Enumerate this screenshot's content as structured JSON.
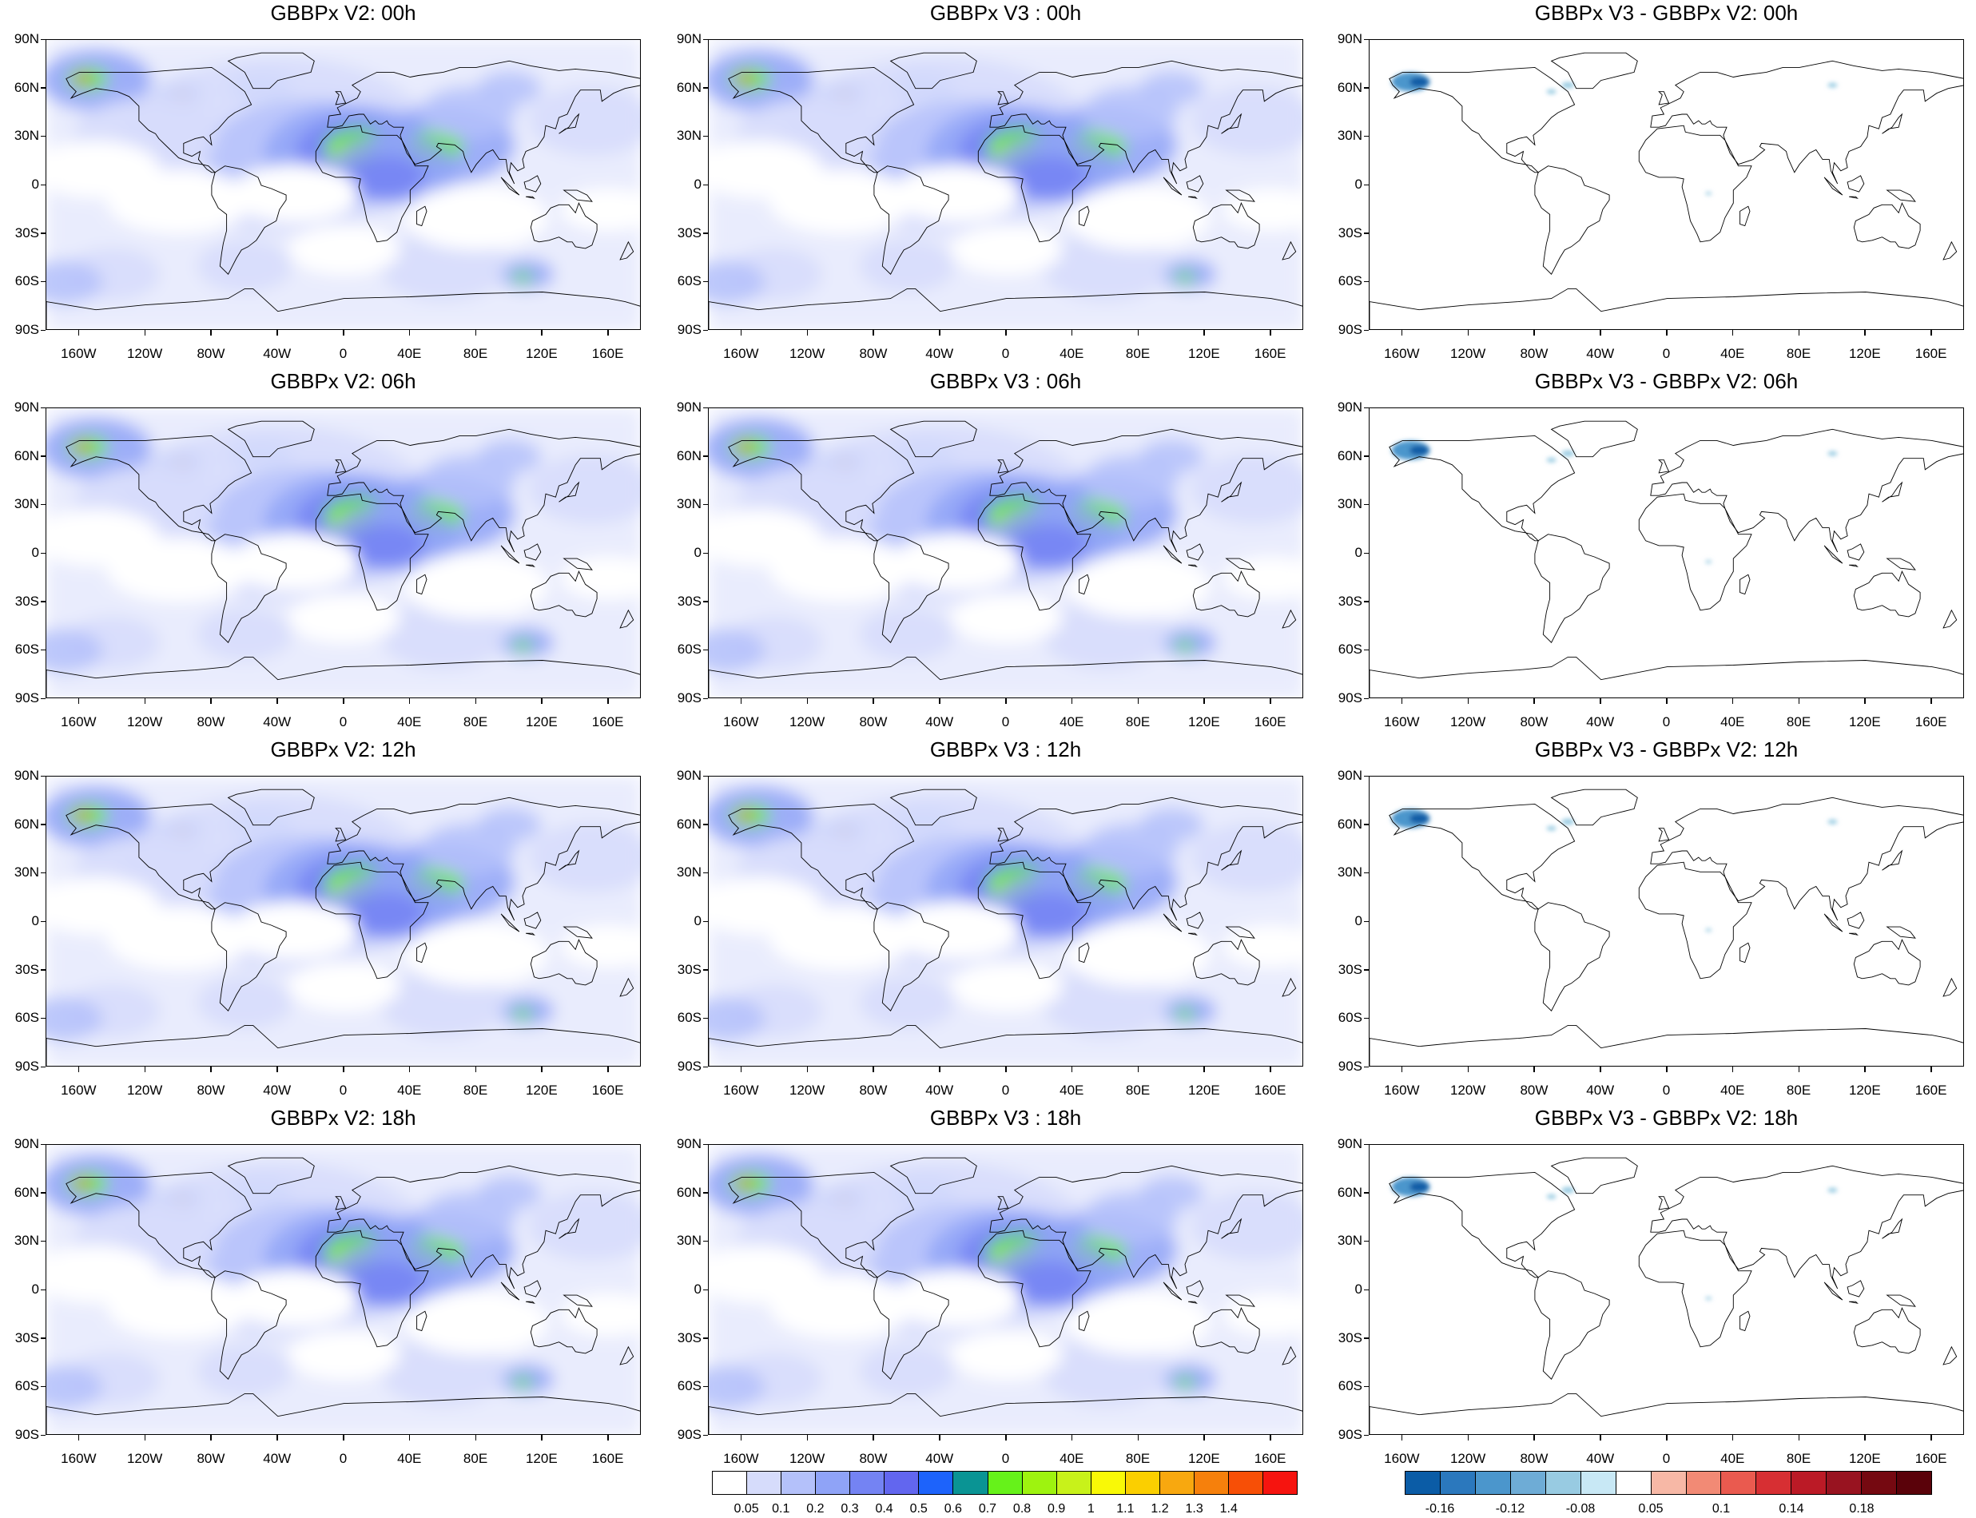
{
  "figure": {
    "rows": [
      {
        "time": "00h",
        "titles": [
          "GBBPx V2: 00h",
          "GBBPx V3 : 00h",
          "GBBPx V3 - GBBPx V2: 00h"
        ]
      },
      {
        "time": "06h",
        "titles": [
          "GBBPx V2: 06h",
          "GBBPx V3 : 06h",
          "GBBPx V3 - GBBPx V2: 06h"
        ]
      },
      {
        "time": "12h",
        "titles": [
          "GBBPx V2: 12h",
          "GBBPx V3 : 12h",
          "GBBPx V3 - GBBPx V2: 12h"
        ]
      },
      {
        "time": "18h",
        "titles": [
          "GBBPx V2: 18h",
          "GBBPx V3 : 18h",
          "GBBPx V3 - GBBPx V2: 18h"
        ]
      }
    ],
    "lat_ticks": [
      "90N",
      "60N",
      "30N",
      "0",
      "30S",
      "60S",
      "90S"
    ],
    "lon_ticks": [
      "160W",
      "120W",
      "80W",
      "40W",
      "0",
      "40E",
      "80E",
      "120E",
      "160E"
    ]
  },
  "legends": {
    "field": {
      "colors": [
        "#ffffff",
        "#d6dcfb",
        "#b4c1fa",
        "#8fa3f7",
        "#7483f3",
        "#6266ef",
        "#1d63fb",
        "#0a9494",
        "#66f21a",
        "#9ef30f",
        "#c8f21a",
        "#f9f906",
        "#fbcf00",
        "#f8a80f",
        "#f6800c",
        "#f74f06",
        "#f6140f"
      ],
      "labels": [
        "0.05",
        "0.1",
        "0.2",
        "0.3",
        "0.4",
        "0.5",
        "0.6",
        "0.7",
        "0.8",
        "0.9",
        "1",
        "1.1",
        "1.2",
        "1.3",
        "1.4"
      ]
    },
    "difference": {
      "colors": [
        "#0b5ca6",
        "#2b78bd",
        "#4b96cc",
        "#6eacd6",
        "#98cbe2",
        "#c8e8f5",
        "#ffffff",
        "#f7b8a6",
        "#f28a75",
        "#ea5a4f",
        "#d72f33",
        "#bb1a26",
        "#981320",
        "#750911",
        "#5a020a"
      ],
      "labels": [
        "-0.16",
        "-0.12",
        "-0.08",
        "0.05",
        "0.1",
        "0.14",
        "0.18"
      ]
    }
  }
}
